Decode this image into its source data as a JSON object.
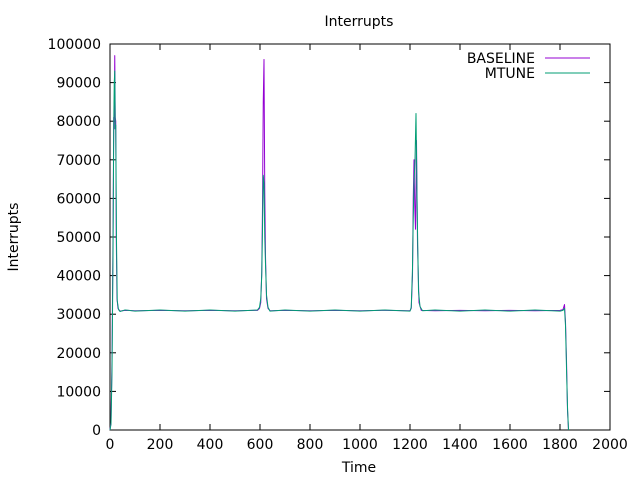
{
  "chart_data": {
    "type": "line",
    "title": "Interrupts",
    "xlabel": "Time",
    "ylabel": "Interrupts",
    "xlim": [
      0,
      2000
    ],
    "ylim": [
      0,
      100000
    ],
    "xticks": [
      0,
      200,
      400,
      600,
      800,
      1000,
      1200,
      1400,
      1600,
      1800,
      2000
    ],
    "yticks": [
      0,
      10000,
      20000,
      30000,
      40000,
      50000,
      60000,
      70000,
      80000,
      90000,
      100000
    ],
    "grid": false,
    "legend_position": "top-right",
    "series": [
      {
        "name": "BASELINE",
        "color": "#9400d3",
        "points": [
          [
            0,
            0
          ],
          [
            4,
            2000
          ],
          [
            8,
            18000
          ],
          [
            12,
            50000
          ],
          [
            15,
            81000
          ],
          [
            17,
            78000
          ],
          [
            19,
            97000
          ],
          [
            21,
            81000
          ],
          [
            23,
            80000
          ],
          [
            25,
            50000
          ],
          [
            28,
            34000
          ],
          [
            32,
            31500
          ],
          [
            40,
            30800
          ],
          [
            60,
            31000
          ],
          [
            100,
            30900
          ],
          [
            200,
            31000
          ],
          [
            300,
            30900
          ],
          [
            400,
            31000
          ],
          [
            500,
            30900
          ],
          [
            590,
            31000
          ],
          [
            598,
            31500
          ],
          [
            603,
            33000
          ],
          [
            607,
            41000
          ],
          [
            610,
            58000
          ],
          [
            613,
            85000
          ],
          [
            616,
            96000
          ],
          [
            619,
            62000
          ],
          [
            622,
            45000
          ],
          [
            626,
            34000
          ],
          [
            632,
            31500
          ],
          [
            640,
            30900
          ],
          [
            700,
            31000
          ],
          [
            800,
            30900
          ],
          [
            900,
            31000
          ],
          [
            1000,
            30900
          ],
          [
            1100,
            31000
          ],
          [
            1200,
            30900
          ],
          [
            1205,
            31500
          ],
          [
            1210,
            40000
          ],
          [
            1213,
            60000
          ],
          [
            1216,
            70000
          ],
          [
            1219,
            58000
          ],
          [
            1222,
            52000
          ],
          [
            1226,
            75000
          ],
          [
            1230,
            48000
          ],
          [
            1236,
            33000
          ],
          [
            1245,
            31000
          ],
          [
            1300,
            30900
          ],
          [
            1400,
            31000
          ],
          [
            1500,
            30900
          ],
          [
            1600,
            31000
          ],
          [
            1700,
            30900
          ],
          [
            1800,
            31000
          ],
          [
            1812,
            31200
          ],
          [
            1818,
            32500
          ],
          [
            1822,
            28000
          ],
          [
            1826,
            18000
          ],
          [
            1830,
            5000
          ],
          [
            1834,
            0
          ]
        ]
      },
      {
        "name": "MTUNE",
        "color": "#009e73",
        "points": [
          [
            0,
            0
          ],
          [
            4,
            1500
          ],
          [
            8,
            15000
          ],
          [
            12,
            45000
          ],
          [
            15,
            79000
          ],
          [
            17,
            90000
          ],
          [
            19,
            93000
          ],
          [
            21,
            78000
          ],
          [
            23,
            79000
          ],
          [
            26,
            49000
          ],
          [
            29,
            33500
          ],
          [
            34,
            31200
          ],
          [
            40,
            30700
          ],
          [
            60,
            31100
          ],
          [
            100,
            30800
          ],
          [
            200,
            31100
          ],
          [
            300,
            30800
          ],
          [
            400,
            31100
          ],
          [
            500,
            30800
          ],
          [
            590,
            31100
          ],
          [
            598,
            31800
          ],
          [
            603,
            34000
          ],
          [
            607,
            40000
          ],
          [
            610,
            52000
          ],
          [
            613,
            66000
          ],
          [
            616,
            64000
          ],
          [
            619,
            50000
          ],
          [
            622,
            43000
          ],
          [
            626,
            35000
          ],
          [
            632,
            31800
          ],
          [
            640,
            30800
          ],
          [
            700,
            31100
          ],
          [
            800,
            30800
          ],
          [
            900,
            31100
          ],
          [
            1000,
            30800
          ],
          [
            1100,
            31100
          ],
          [
            1200,
            30800
          ],
          [
            1205,
            31800
          ],
          [
            1210,
            42000
          ],
          [
            1213,
            55000
          ],
          [
            1216,
            64000
          ],
          [
            1220,
            70000
          ],
          [
            1224,
            82000
          ],
          [
            1228,
            60000
          ],
          [
            1234,
            36000
          ],
          [
            1240,
            32000
          ],
          [
            1250,
            30900
          ],
          [
            1300,
            31100
          ],
          [
            1400,
            30800
          ],
          [
            1500,
            31100
          ],
          [
            1600,
            30800
          ],
          [
            1700,
            31100
          ],
          [
            1800,
            30800
          ],
          [
            1812,
            31000
          ],
          [
            1818,
            31500
          ],
          [
            1822,
            27000
          ],
          [
            1826,
            16000
          ],
          [
            1830,
            6000
          ],
          [
            1834,
            0
          ]
        ]
      }
    ]
  }
}
